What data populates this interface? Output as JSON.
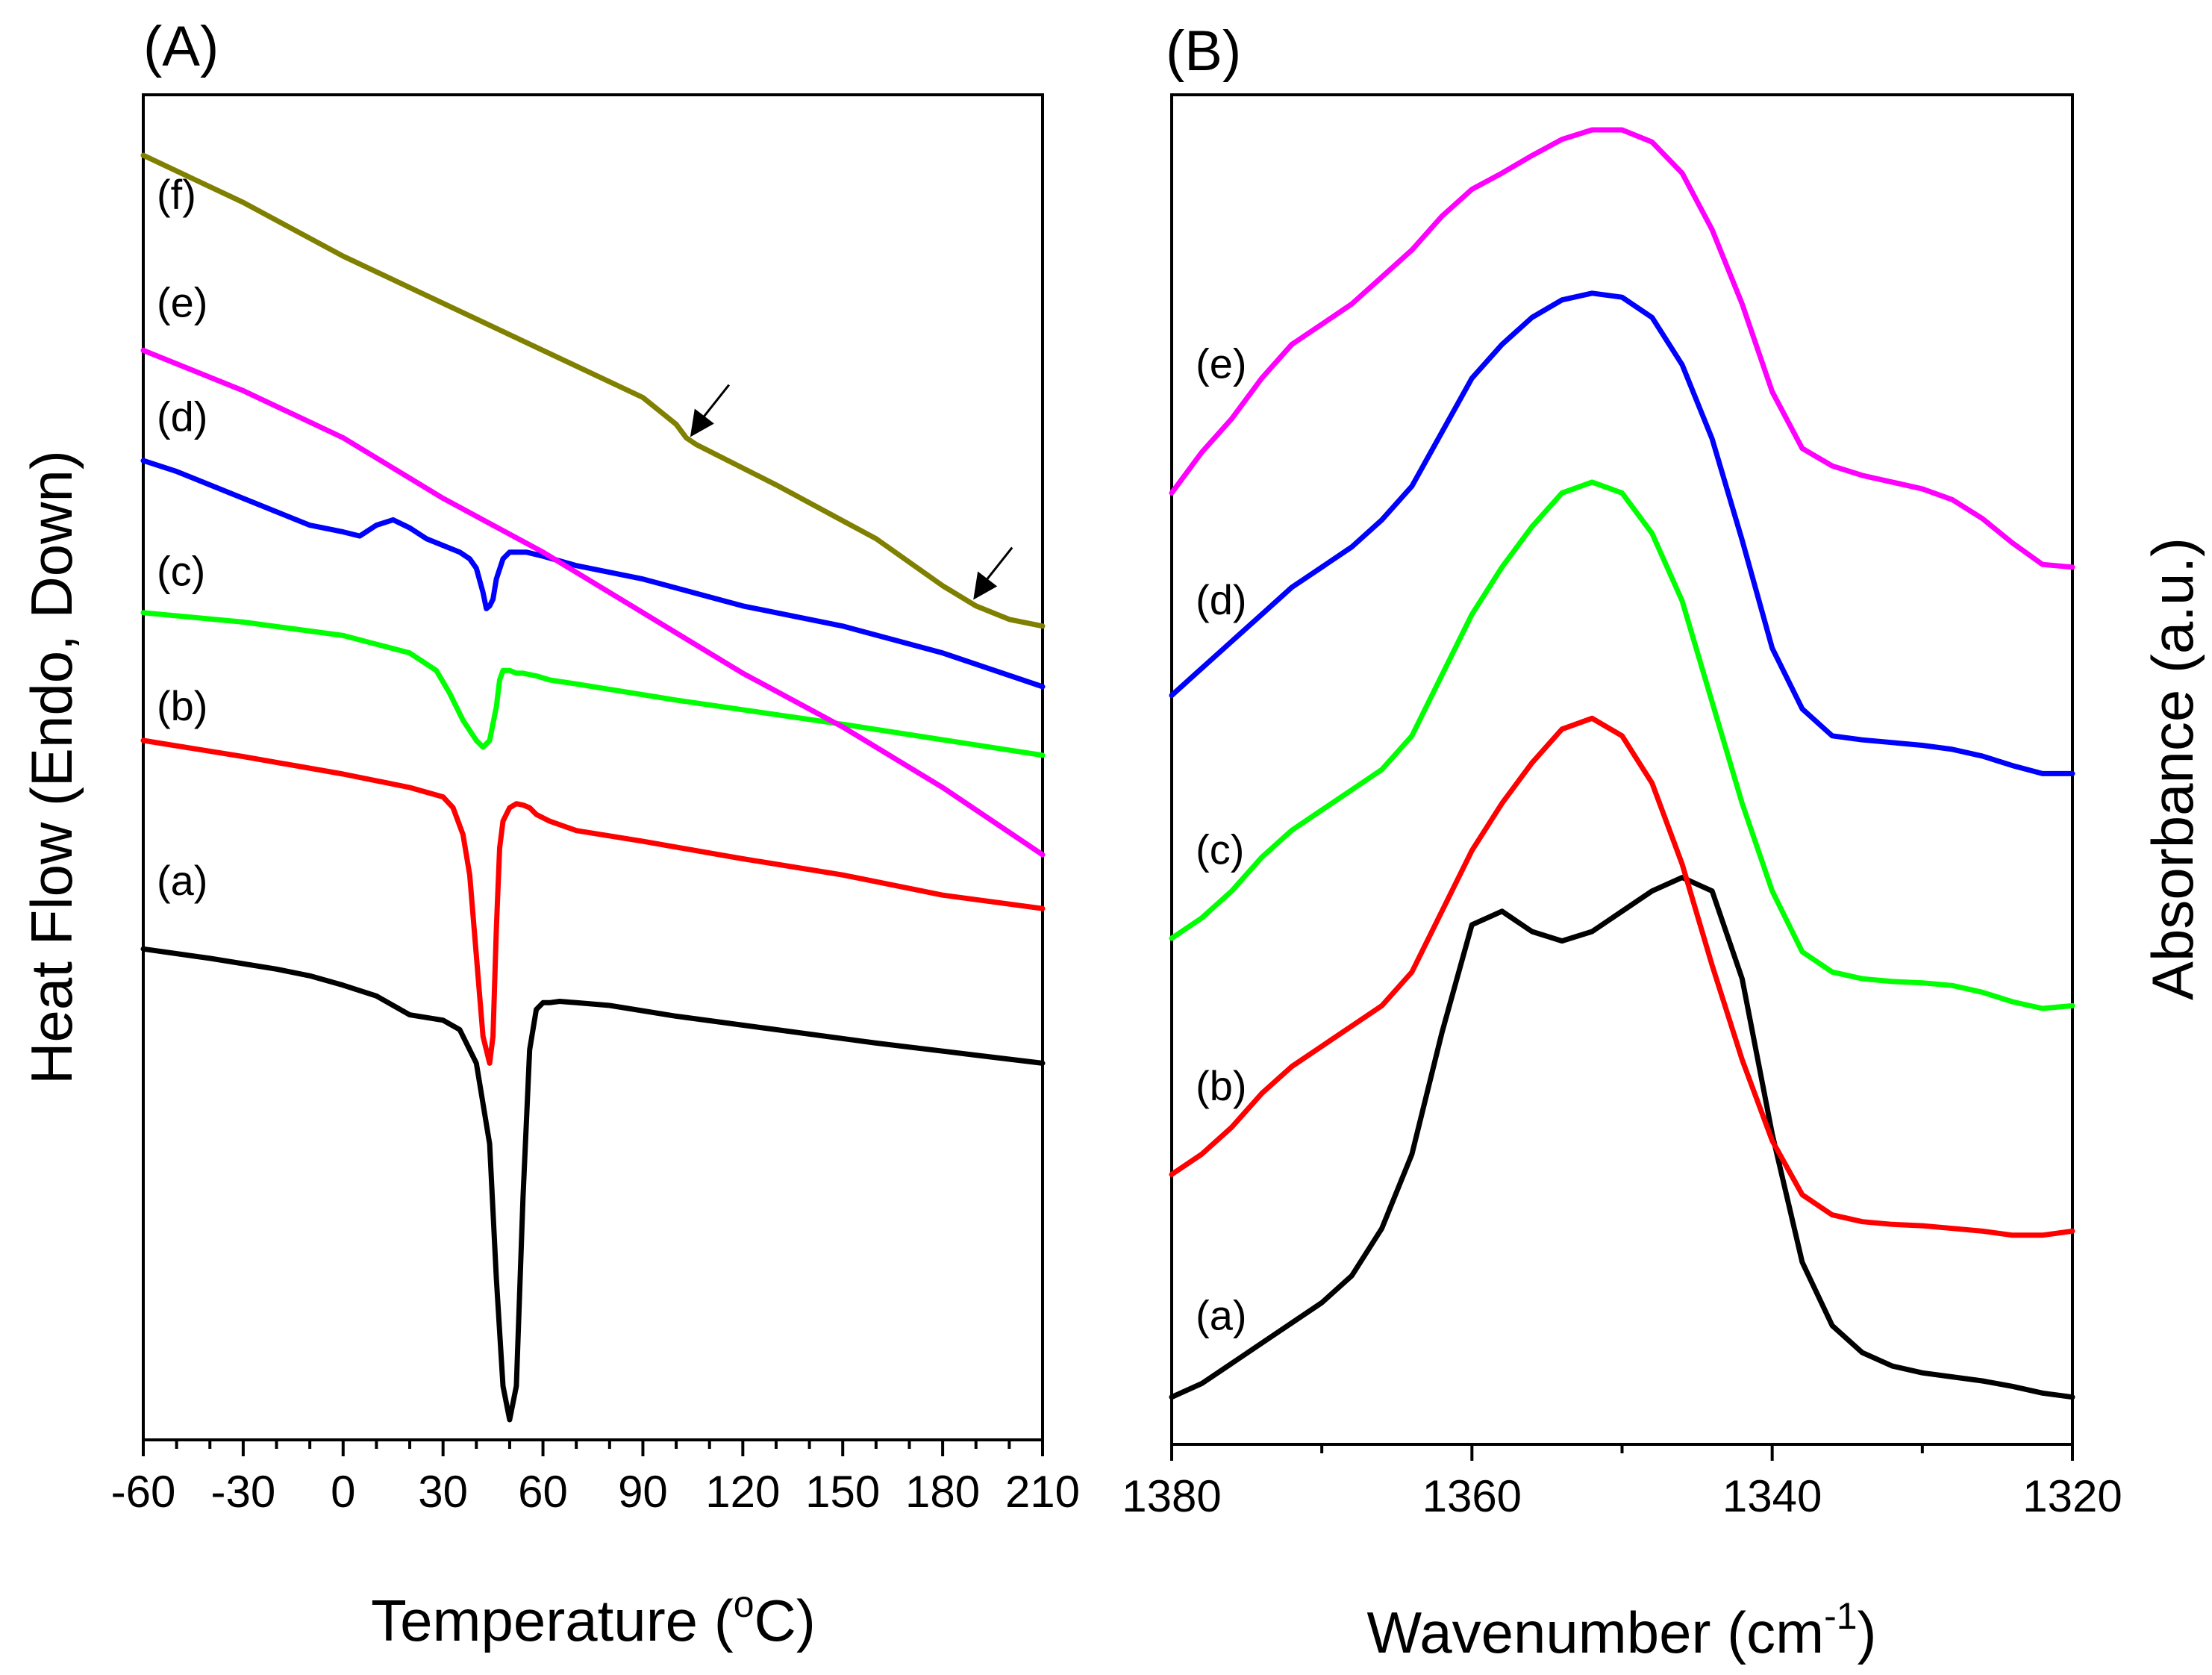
{
  "chart_data": [
    {
      "type": "line",
      "panel": "(A)",
      "xlabel": "Temperature (°C)",
      "xlabel_parts": {
        "base": "Temperature (",
        "sup": "o",
        "tail": "C)"
      },
      "ylabel": "Heat Flow (Endo, Down)",
      "xlim": [
        -60,
        210
      ],
      "xticks": [
        -60,
        -30,
        0,
        30,
        60,
        90,
        120,
        150,
        180,
        210
      ],
      "xtick_labels": [
        "-60",
        "-30",
        "0",
        "30",
        "60",
        "90",
        "120",
        "150",
        "180",
        "210"
      ],
      "ylim": [
        0,
        100
      ],
      "yticks_visible": false,
      "annotations": [
        {
          "type": "arrow",
          "series": "(f)",
          "x": 106,
          "note": "transition marker"
        },
        {
          "type": "arrow",
          "series": "(f)",
          "x": 191,
          "note": "transition marker"
        }
      ],
      "series": [
        {
          "name": "(a)",
          "label": "(a)",
          "color": "#000000",
          "label_x": -60,
          "label_y": 40.5,
          "x": [
            -60,
            -40,
            -20,
            -10,
            0,
            10,
            20,
            25,
            30,
            35,
            40,
            44,
            46,
            48,
            50,
            52,
            54,
            56,
            58,
            60,
            62,
            65,
            70,
            80,
            100,
            130,
            160,
            190,
            210
          ],
          "y": [
            36.5,
            35.8,
            35.0,
            34.5,
            33.8,
            33.0,
            31.6,
            31.4,
            31.2,
            30.5,
            28.0,
            22.0,
            12.0,
            4.0,
            1.5,
            4.0,
            18.0,
            29.0,
            32.0,
            32.5,
            32.5,
            32.6,
            32.5,
            32.3,
            31.5,
            30.5,
            29.5,
            28.6,
            28.0
          ]
        },
        {
          "name": "(b)",
          "label": "(b)",
          "color": "#ff0000",
          "label_x": -60,
          "label_y": 53.5,
          "x": [
            -60,
            -30,
            0,
            20,
            30,
            33,
            36,
            38,
            40,
            42,
            44,
            45,
            46,
            47,
            48,
            50,
            52,
            54,
            56,
            58,
            62,
            70,
            90,
            120,
            150,
            180,
            210
          ],
          "y": [
            52.0,
            50.8,
            49.5,
            48.5,
            47.8,
            47.0,
            45.0,
            42.0,
            36.0,
            30.0,
            28.0,
            30.0,
            38.0,
            44.0,
            46.0,
            47.0,
            47.3,
            47.2,
            47.0,
            46.5,
            46.0,
            45.3,
            44.5,
            43.2,
            42.0,
            40.5,
            39.5
          ]
        },
        {
          "name": "(c)",
          "label": "(c)",
          "color": "#00ff00",
          "label_x": -60,
          "label_y": 63.5,
          "x": [
            -60,
            -30,
            0,
            20,
            28,
            32,
            36,
            40,
            42,
            44,
            46,
            47,
            48,
            50,
            52,
            54,
            58,
            62,
            70,
            100,
            150,
            210
          ],
          "y": [
            61.5,
            60.8,
            59.8,
            58.5,
            57.2,
            55.5,
            53.5,
            52.0,
            51.5,
            52.0,
            54.5,
            56.5,
            57.2,
            57.2,
            57.0,
            57.0,
            56.8,
            56.5,
            56.2,
            55.0,
            53.2,
            50.9
          ]
        },
        {
          "name": "(d)",
          "label": "(d)",
          "color": "#0000ff",
          "label_x": -60,
          "label_y": 75.0,
          "x": [
            -60,
            -50,
            -40,
            -30,
            -20,
            -10,
            0,
            5,
            10,
            15,
            20,
            25,
            30,
            35,
            38,
            40,
            42,
            43,
            44,
            45,
            46,
            48,
            50,
            55,
            60,
            70,
            90,
            120,
            150,
            180,
            210
          ],
          "y": [
            72.8,
            72.0,
            71.0,
            70.0,
            69.0,
            68.0,
            67.5,
            67.2,
            68.0,
            68.4,
            67.8,
            67.0,
            66.5,
            66.0,
            65.5,
            64.8,
            63.0,
            61.8,
            62.0,
            62.5,
            64.0,
            65.5,
            66.0,
            66.0,
            65.7,
            65.0,
            64.0,
            62.0,
            60.5,
            58.5,
            56.0
          ]
        },
        {
          "name": "(e)",
          "label": "(e)",
          "color": "#ff00ff",
          "label_x": -60,
          "label_y": 83.5,
          "x": [
            -60,
            -30,
            0,
            30,
            60,
            90,
            120,
            150,
            180,
            210
          ],
          "y": [
            81.0,
            78.0,
            74.5,
            70.0,
            66.0,
            61.5,
            57.0,
            53.0,
            48.5,
            43.5
          ]
        },
        {
          "name": "(f)",
          "label": "(f)",
          "color": "#808000",
          "label_x": -60,
          "label_y": 91.5,
          "x": [
            -60,
            -30,
            0,
            30,
            60,
            90,
            100,
            103,
            106,
            110,
            130,
            160,
            180,
            190,
            200,
            210
          ],
          "y": [
            95.5,
            92.0,
            88.0,
            84.5,
            81.0,
            77.5,
            75.5,
            74.5,
            74.0,
            73.5,
            71.0,
            67.0,
            63.5,
            62.0,
            61.0,
            60.5
          ]
        }
      ]
    },
    {
      "type": "line",
      "panel": "(B)",
      "xlabel": "Wavenumber (cm⁻¹)",
      "xlabel_parts": {
        "base": "Wavenumber (cm",
        "sup": "-1",
        "tail": ")"
      },
      "ylabel": "Absorbance (a.u.)",
      "xlim": [
        1380,
        1320
      ],
      "xticks": [
        1380,
        1360,
        1340,
        1320
      ],
      "xtick_labels": [
        "1380",
        "1360",
        "1340",
        "1320"
      ],
      "xminor_ticks": [
        1370,
        1350,
        1330
      ],
      "ylim": [
        0,
        100
      ],
      "yticks_visible": false,
      "series": [
        {
          "name": "(a)",
          "label": "(a)",
          "color": "#000000",
          "label_x": 1379,
          "label_y": 8.5,
          "x": [
            1380,
            1378,
            1376,
            1374,
            1372,
            1370,
            1368,
            1366,
            1364,
            1362,
            1360,
            1358,
            1356,
            1354,
            1352,
            1350,
            1348,
            1346,
            1344,
            1342,
            1340,
            1338,
            1336,
            1334,
            1332,
            1330,
            1328,
            1326,
            1324,
            1322,
            1320
          ],
          "y": [
            3.5,
            4.5,
            6.0,
            7.5,
            9.0,
            10.5,
            12.5,
            16.0,
            21.5,
            30.5,
            38.5,
            39.5,
            38.0,
            37.3,
            38.0,
            39.5,
            41.0,
            42.0,
            41.0,
            34.5,
            23.0,
            13.5,
            8.8,
            6.8,
            5.8,
            5.3,
            5.0,
            4.7,
            4.3,
            3.8,
            3.5
          ]
        },
        {
          "name": "(b)",
          "label": "(b)",
          "color": "#ff0000",
          "label_x": 1379,
          "label_y": 25.5,
          "x": [
            1380,
            1378,
            1376,
            1374,
            1372,
            1370,
            1368,
            1366,
            1364,
            1362,
            1360,
            1358,
            1356,
            1354,
            1352,
            1350,
            1348,
            1346,
            1344,
            1342,
            1340,
            1338,
            1336,
            1334,
            1332,
            1330,
            1328,
            1326,
            1324,
            1322,
            1320
          ],
          "y": [
            20.0,
            21.5,
            23.5,
            26.0,
            28.0,
            29.5,
            31.0,
            32.5,
            35.0,
            39.5,
            44.0,
            47.5,
            50.5,
            53.0,
            53.8,
            52.5,
            49.0,
            43.0,
            35.5,
            28.5,
            22.5,
            18.5,
            17.0,
            16.5,
            16.3,
            16.2,
            16.0,
            15.8,
            15.5,
            15.5,
            15.8
          ]
        },
        {
          "name": "(c)",
          "label": "(c)",
          "color": "#00ff00",
          "label_x": 1379,
          "label_y": 43.0,
          "x": [
            1380,
            1378,
            1376,
            1374,
            1372,
            1370,
            1368,
            1366,
            1364,
            1362,
            1360,
            1358,
            1356,
            1354,
            1352,
            1350,
            1348,
            1346,
            1344,
            1342,
            1340,
            1338,
            1336,
            1334,
            1332,
            1330,
            1328,
            1326,
            1324,
            1322,
            1320
          ],
          "y": [
            37.5,
            39.0,
            41.0,
            43.5,
            45.5,
            47.0,
            48.5,
            50.0,
            52.5,
            57.0,
            61.5,
            65.0,
            68.0,
            70.5,
            71.3,
            70.5,
            67.5,
            62.5,
            55.0,
            47.5,
            41.0,
            36.5,
            35.0,
            34.5,
            34.3,
            34.2,
            34.0,
            33.5,
            32.8,
            32.3,
            32.5
          ]
        },
        {
          "name": "(d)",
          "label": "(d)",
          "color": "#0000ff",
          "label_x": 1379,
          "label_y": 61.5,
          "x": [
            1380,
            1378,
            1376,
            1374,
            1372,
            1370,
            1368,
            1366,
            1364,
            1362,
            1360,
            1358,
            1356,
            1354,
            1352,
            1350,
            1348,
            1346,
            1344,
            1342,
            1340,
            1338,
            1336,
            1334,
            1332,
            1330,
            1328,
            1326,
            1324,
            1322,
            1320
          ],
          "y": [
            55.5,
            57.5,
            59.5,
            61.5,
            63.5,
            65.0,
            66.5,
            68.5,
            71.0,
            75.0,
            79.0,
            81.5,
            83.5,
            84.8,
            85.3,
            85.0,
            83.5,
            80.0,
            74.5,
            67.0,
            59.0,
            54.5,
            52.5,
            52.2,
            52.0,
            51.8,
            51.5,
            51.0,
            50.3,
            49.7,
            49.7
          ]
        },
        {
          "name": "(e)",
          "label": "(e)",
          "color": "#ff00ff",
          "label_x": 1379,
          "label_y": 79.0,
          "x": [
            1380,
            1378,
            1376,
            1374,
            1372,
            1370,
            1368,
            1366,
            1364,
            1362,
            1360,
            1358,
            1356,
            1354,
            1352,
            1350,
            1348,
            1346,
            1344,
            1342,
            1340,
            1338,
            1336,
            1334,
            1332,
            1330,
            1328,
            1326,
            1324,
            1322,
            1320
          ],
          "y": [
            70.5,
            73.5,
            76.0,
            79.0,
            81.5,
            83.0,
            84.5,
            86.5,
            88.5,
            91.0,
            93.0,
            94.2,
            95.5,
            96.7,
            97.4,
            97.4,
            96.5,
            94.2,
            90.0,
            84.5,
            78.0,
            73.8,
            72.5,
            71.8,
            71.3,
            70.8,
            70.0,
            68.6,
            66.8,
            65.2,
            65.0
          ]
        }
      ]
    }
  ]
}
